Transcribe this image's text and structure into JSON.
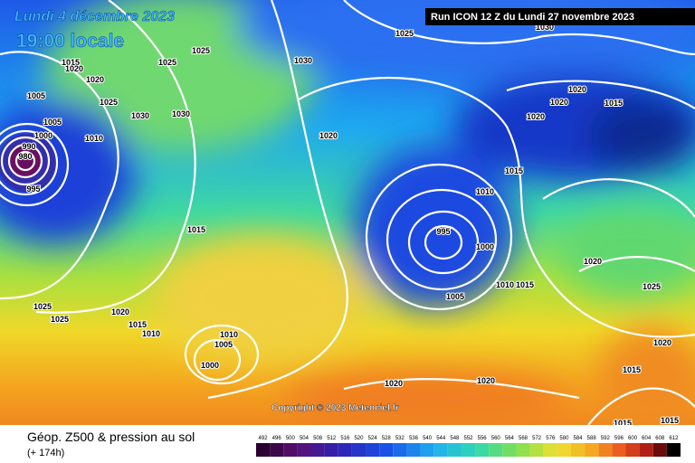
{
  "header": {
    "date": "Lundi 4 décembre 2023",
    "time": "19:00 locale",
    "run": "Run ICON 12 Z du Lundi 27 novembre 2023"
  },
  "copyright": "Copyright © 2023 Meteociel.fr",
  "footer": {
    "title": "Géop. Z500 & pression au sol",
    "lead": "(+ 174h)"
  },
  "scale": [
    492,
    496,
    500,
    504,
    508,
    512,
    516,
    520,
    524,
    528,
    532,
    536,
    540,
    544,
    548,
    552,
    556,
    560,
    564,
    568,
    572,
    576,
    580,
    584,
    588,
    592,
    596,
    600,
    604,
    608,
    612
  ],
  "isobar_labels": [
    "1025",
    "1030",
    "1025",
    "1025",
    "1015",
    "1020",
    "1020",
    "1030",
    "1005",
    "1025",
    "1005",
    "1030",
    "1030",
    "1000",
    "1010",
    "1020",
    "1020",
    "1020",
    "1015",
    "1020",
    "990",
    "980",
    "995",
    "1015",
    "1010",
    "1015",
    "995",
    "1000",
    "1020",
    "1005",
    "1010",
    "1015",
    "1025",
    "1025",
    "1025",
    "1020",
    "1015",
    "1010",
    "1010",
    "1005",
    "1000",
    "1020",
    "1020",
    "1020",
    "1015",
    "1015",
    "1015"
  ]
}
